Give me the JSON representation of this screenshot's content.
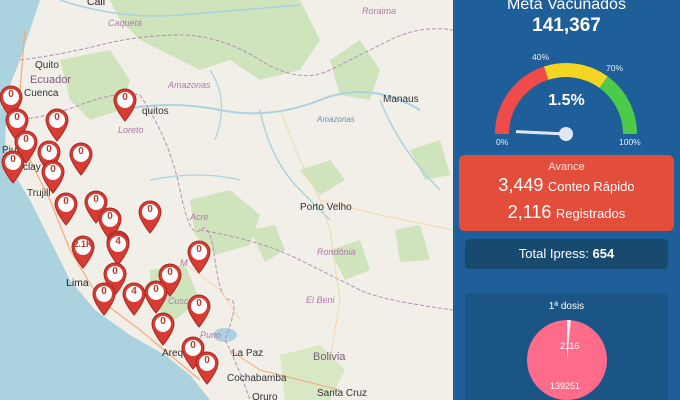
{
  "map": {
    "labels": {
      "cali": "Cali",
      "caqueta": "Caquetá",
      "roraima": "Roraima",
      "ecuador": "Ecuador",
      "quito": "Quito",
      "cuenca": "Cuenca",
      "piura": "Piu",
      "chiclayo": "Chiclay",
      "trujillo": "Trujill",
      "lima": "Lima",
      "amazonas_region": "Amazonas",
      "amazonas_river": "Amazonas",
      "manaus": "Manaus",
      "iquitos": "quitos",
      "loreto": "Loreto",
      "acre": "Acre",
      "porto_velho": "Porto Velho",
      "rondonia": "Rondônia",
      "el_beni": "El Beni",
      "bolivia": "Bolivia",
      "la_paz": "La Paz",
      "cochabamba": "Cochabamba",
      "santa_cruz": "Santa Cruz",
      "oruro": "Oruro",
      "puno": "Puno",
      "cusco": "Cusco",
      "arequipa": "Areq",
      "madre": "M"
    },
    "markers": [
      "0",
      "0",
      "0",
      "0",
      "0",
      "0",
      "0",
      "0",
      "0",
      "0",
      "0",
      "0",
      "0",
      "0",
      "2.1K",
      "4",
      "0",
      "0",
      "0",
      "0",
      "0",
      "4",
      "0",
      "0",
      "0",
      "0",
      "0"
    ]
  },
  "panel": {
    "meta_title": "Meta Vacunados",
    "meta_value": "141,367",
    "gauge": {
      "value_label": "1.5%",
      "value_fraction": 0.015,
      "ticks": {
        "t0": "0%",
        "t40": "40%",
        "t70": "70%",
        "t100": "100%"
      },
      "colors": {
        "red": "#f04b4b",
        "yellow": "#f2d623",
        "green": "#4ccb4a"
      }
    },
    "avance": {
      "title": "Avance",
      "conteo_value": "3,449",
      "conteo_label": "Conteo Rápido",
      "registrados_value": "2,116",
      "registrados_label": "Registrados"
    },
    "ipress": {
      "label": "Total Ipress:",
      "value": "654"
    },
    "dosis": {
      "title": "1ª dosis",
      "slice_a": "2116",
      "slice_b": "139251",
      "colors": {
        "main": "#ff6b8b",
        "small": "#f5f5f5"
      }
    }
  }
}
